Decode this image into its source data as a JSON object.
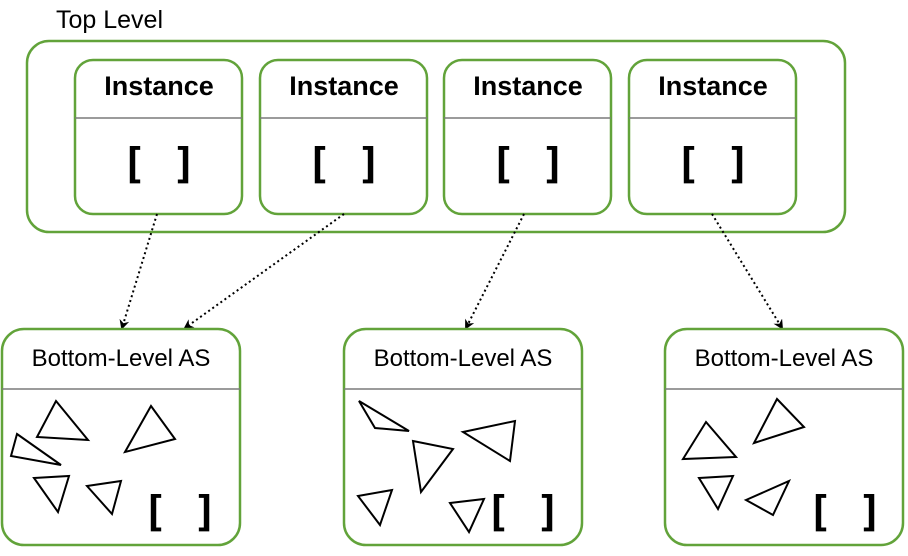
{
  "top_level": {
    "title": "Top Level",
    "instances": [
      {
        "title": "Instance",
        "content": "[ ]"
      },
      {
        "title": "Instance",
        "content": "[ ]"
      },
      {
        "title": "Instance",
        "content": "[ ]"
      },
      {
        "title": "Instance",
        "content": "[ ]"
      }
    ]
  },
  "bottom_level": [
    {
      "title": "Bottom-Level AS",
      "content": "[ ]"
    },
    {
      "title": "Bottom-Level AS",
      "content": "[ ]"
    },
    {
      "title": "Bottom-Level AS",
      "content": "[ ]"
    }
  ],
  "edges": [
    {
      "from": "instance-1",
      "to": "blas-1"
    },
    {
      "from": "instance-2",
      "to": "blas-1"
    },
    {
      "from": "instance-3",
      "to": "blas-2"
    },
    {
      "from": "instance-4",
      "to": "blas-3"
    }
  ],
  "colors": {
    "box_border": "#62a33a",
    "divider": "#7a7a7a",
    "edge": "#000000"
  }
}
